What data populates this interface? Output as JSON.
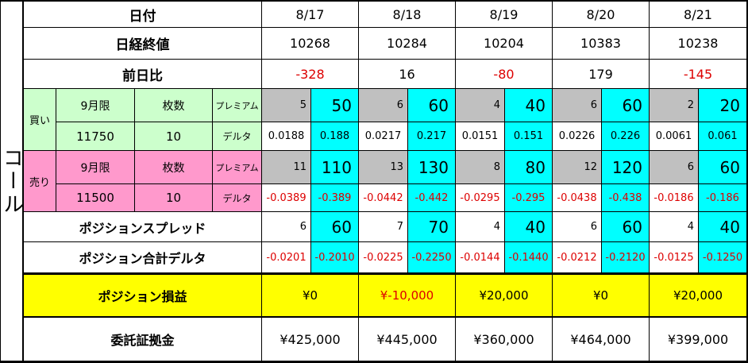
{
  "left_label": "コール",
  "colors": {
    "gray_cell": "#c0c0c0",
    "cyan_cell": "#00ffff",
    "buy_green": "#ccffcc",
    "sell_pink": "#ff99cc",
    "pl_yellow": "#ffff00",
    "negative_red": "#dd0000"
  },
  "row_labels": {
    "date": "日付",
    "nikkei_close": "日経終値",
    "day_change": "前日比",
    "buy": "買い",
    "sell": "売り",
    "contract_month": "9月限",
    "lots_header": "枚数",
    "premium": "プレミアム",
    "delta": "デルタ",
    "buy_strike": "11750",
    "buy_lots": "10",
    "sell_strike": "11500",
    "sell_lots": "10",
    "position_spread": "ポジションスプレッド",
    "position_total_delta": "ポジション合計デルタ",
    "position_pl": "ポジション損益",
    "margin": "委託証拠金"
  },
  "columns": [
    {
      "date": "8/17",
      "nikkei": "10268",
      "change": "-328",
      "buy_premium": "5",
      "buy_premium_x10": "50",
      "buy_delta": "0.0188",
      "buy_delta_x10": "0.188",
      "sell_premium": "11",
      "sell_premium_x10": "110",
      "sell_delta": "-0.0389",
      "sell_delta_x10": "-0.389",
      "spread": "6",
      "spread_x10": "60",
      "total_delta": "-0.0201",
      "total_delta_x10": "-0.2010",
      "pl": "¥0",
      "margin": "¥425,000"
    },
    {
      "date": "8/18",
      "nikkei": "10284",
      "change": "16",
      "buy_premium": "6",
      "buy_premium_x10": "60",
      "buy_delta": "0.0217",
      "buy_delta_x10": "0.217",
      "sell_premium": "13",
      "sell_premium_x10": "130",
      "sell_delta": "-0.0442",
      "sell_delta_x10": "-0.442",
      "spread": "7",
      "spread_x10": "70",
      "total_delta": "-0.0225",
      "total_delta_x10": "-0.2250",
      "pl": "¥-10,000",
      "margin": "¥445,000"
    },
    {
      "date": "8/19",
      "nikkei": "10204",
      "change": "-80",
      "buy_premium": "4",
      "buy_premium_x10": "40",
      "buy_delta": "0.0151",
      "buy_delta_x10": "0.151",
      "sell_premium": "8",
      "sell_premium_x10": "80",
      "sell_delta": "-0.0295",
      "sell_delta_x10": "-0.295",
      "spread": "4",
      "spread_x10": "40",
      "total_delta": "-0.0144",
      "total_delta_x10": "-0.1440",
      "pl": "¥20,000",
      "margin": "¥360,000"
    },
    {
      "date": "8/20",
      "nikkei": "10383",
      "change": "179",
      "buy_premium": "6",
      "buy_premium_x10": "60",
      "buy_delta": "0.0226",
      "buy_delta_x10": "0.226",
      "sell_premium": "12",
      "sell_premium_x10": "120",
      "sell_delta": "-0.0438",
      "sell_delta_x10": "-0.438",
      "spread": "6",
      "spread_x10": "60",
      "total_delta": "-0.0212",
      "total_delta_x10": "-0.2120",
      "pl": "¥0",
      "margin": "¥464,000"
    },
    {
      "date": "8/21",
      "nikkei": "10238",
      "change": "-145",
      "buy_premium": "2",
      "buy_premium_x10": "20",
      "buy_delta": "0.0061",
      "buy_delta_x10": "0.061",
      "sell_premium": "6",
      "sell_premium_x10": "60",
      "sell_delta": "-0.0186",
      "sell_delta_x10": "-0.186",
      "spread": "4",
      "spread_x10": "40",
      "total_delta": "-0.0125",
      "total_delta_x10": "-0.1250",
      "pl": "¥20,000",
      "margin": "¥399,000"
    }
  ]
}
